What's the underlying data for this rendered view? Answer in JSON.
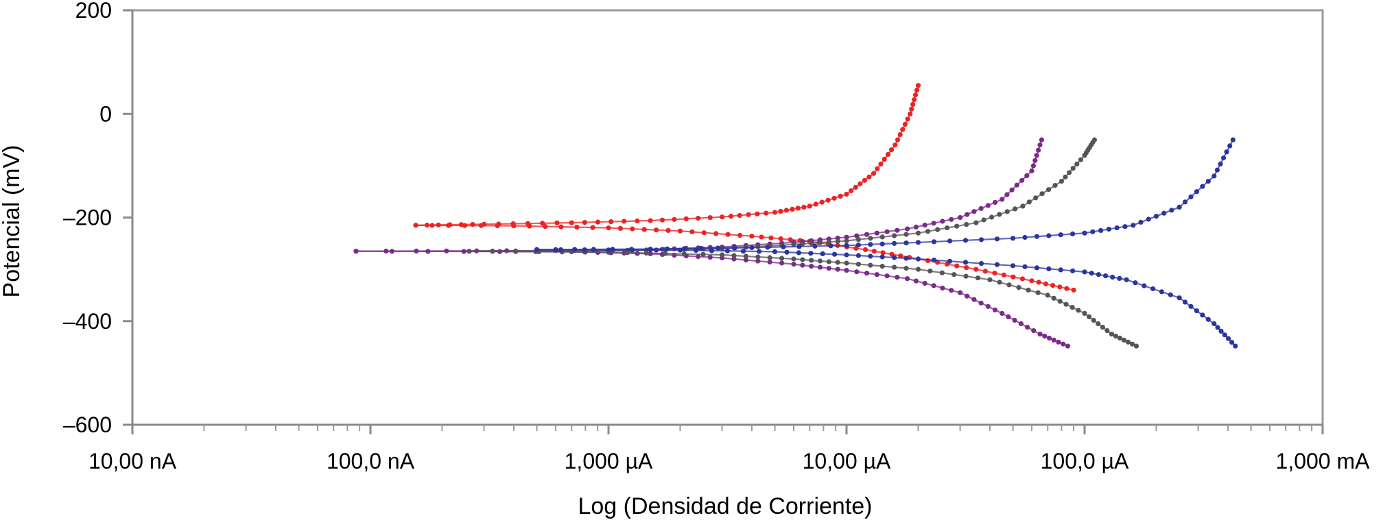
{
  "chart_data": {
    "type": "line",
    "title": "",
    "xlabel": "Log (Densidad de Corriente)",
    "ylabel": "Potencial (mV)",
    "x_scale": "log",
    "x_unit": "A",
    "xlim": [
      1e-08,
      0.001
    ],
    "ylim": [
      -600,
      200
    ],
    "x_ticks": [
      {
        "value": 1e-08,
        "label": "10,00 nA"
      },
      {
        "value": 1e-07,
        "label": "100,0 nA"
      },
      {
        "value": 1e-06,
        "label": "1,000 µA"
      },
      {
        "value": 1e-05,
        "label": "10,00 µA"
      },
      {
        "value": 0.0001,
        "label": "100,0 µA"
      },
      {
        "value": 0.001,
        "label": "1,000 mA"
      }
    ],
    "y_ticks": [
      {
        "value": 200,
        "label": "200"
      },
      {
        "value": 0,
        "label": "0"
      },
      {
        "value": -200,
        "label": "–200"
      },
      {
        "value": -400,
        "label": "–400"
      },
      {
        "value": -600,
        "label": "–600"
      }
    ],
    "grid": false,
    "legend": "none",
    "series": [
      {
        "color": "#ee2222",
        "ecorr_mV": -215,
        "icorr_A": 1.55e-07,
        "anodic": [
          [
            1.55e-07,
            -215
          ],
          [
            3e-07,
            -213
          ],
          [
            7e-07,
            -210
          ],
          [
            1.5e-06,
            -206
          ],
          [
            3e-06,
            -199
          ],
          [
            5e-06,
            -190
          ],
          [
            7e-06,
            -178
          ],
          [
            1e-05,
            -155
          ],
          [
            1.3e-05,
            -115
          ],
          [
            1.6e-05,
            -60
          ],
          [
            1.85e-05,
            0
          ],
          [
            2e-05,
            55
          ]
        ],
        "cathodic": [
          [
            1.55e-07,
            -215
          ],
          [
            4e-07,
            -216
          ],
          [
            1e-06,
            -220
          ],
          [
            2e-06,
            -226
          ],
          [
            4e-06,
            -236
          ],
          [
            7e-06,
            -246
          ],
          [
            1.2e-05,
            -262
          ],
          [
            2e-05,
            -280
          ],
          [
            3.5e-05,
            -300
          ],
          [
            6e-05,
            -322
          ],
          [
            9e-05,
            -340
          ]
        ]
      },
      {
        "color": "#7b2a8c",
        "ecorr_mV": -265,
        "icorr_A": 8.7e-08,
        "anodic": [
          [
            8.7e-08,
            -265
          ],
          [
            5e-07,
            -264
          ],
          [
            1.5e-06,
            -262
          ],
          [
            3e-06,
            -257
          ],
          [
            6e-06,
            -248
          ],
          [
            1e-05,
            -238
          ],
          [
            1.8e-05,
            -222
          ],
          [
            3e-05,
            -200
          ],
          [
            4.5e-05,
            -165
          ],
          [
            6e-05,
            -110
          ],
          [
            6.6e-05,
            -50
          ]
        ],
        "cathodic": [
          [
            8.7e-08,
            -265
          ],
          [
            7e-07,
            -266
          ],
          [
            1.5e-06,
            -270
          ],
          [
            3e-06,
            -278
          ],
          [
            6e-06,
            -290
          ],
          [
            1e-05,
            -302
          ],
          [
            1.8e-05,
            -318
          ],
          [
            3e-05,
            -345
          ],
          [
            4.5e-05,
            -385
          ],
          [
            6.5e-05,
            -425
          ],
          [
            8.5e-05,
            -448
          ]
        ]
      },
      {
        "color": "#555555",
        "ecorr_mV": -265,
        "icorr_A": 2.6e-07,
        "anodic": [
          [
            2.6e-07,
            -265
          ],
          [
            1e-06,
            -264
          ],
          [
            3e-06,
            -260
          ],
          [
            6e-06,
            -252
          ],
          [
            1e-05,
            -245
          ],
          [
            2e-05,
            -230
          ],
          [
            3.5e-05,
            -210
          ],
          [
            5.5e-05,
            -178
          ],
          [
            8e-05,
            -130
          ],
          [
            0.0001,
            -80
          ],
          [
            0.00011,
            -50
          ]
        ],
        "cathodic": [
          [
            2.6e-07,
            -265
          ],
          [
            1e-06,
            -267
          ],
          [
            3e-06,
            -272
          ],
          [
            6e-06,
            -280
          ],
          [
            1e-05,
            -288
          ],
          [
            2e-05,
            -300
          ],
          [
            4e-05,
            -320
          ],
          [
            7e-05,
            -350
          ],
          [
            0.0001,
            -385
          ],
          [
            0.00013,
            -425
          ],
          [
            0.000165,
            -448
          ]
        ]
      },
      {
        "color": "#2a35a0",
        "ecorr_mV": -262,
        "icorr_A": 5e-07,
        "anodic": [
          [
            5e-07,
            -262
          ],
          [
            1.5e-06,
            -261
          ],
          [
            4e-06,
            -258
          ],
          [
            1e-05,
            -254
          ],
          [
            2e-05,
            -248
          ],
          [
            5e-05,
            -240
          ],
          [
            0.0001,
            -230
          ],
          [
            0.00016,
            -215
          ],
          [
            0.00025,
            -180
          ],
          [
            0.00035,
            -120
          ],
          [
            0.00042,
            -50
          ]
        ],
        "cathodic": [
          [
            5e-07,
            -262
          ],
          [
            2e-06,
            -263
          ],
          [
            5e-06,
            -266
          ],
          [
            1e-05,
            -272
          ],
          [
            2e-05,
            -280
          ],
          [
            5e-05,
            -293
          ],
          [
            0.0001,
            -305
          ],
          [
            0.00015,
            -320
          ],
          [
            0.00025,
            -355
          ],
          [
            0.00035,
            -405
          ],
          [
            0.00043,
            -448
          ]
        ]
      }
    ]
  }
}
